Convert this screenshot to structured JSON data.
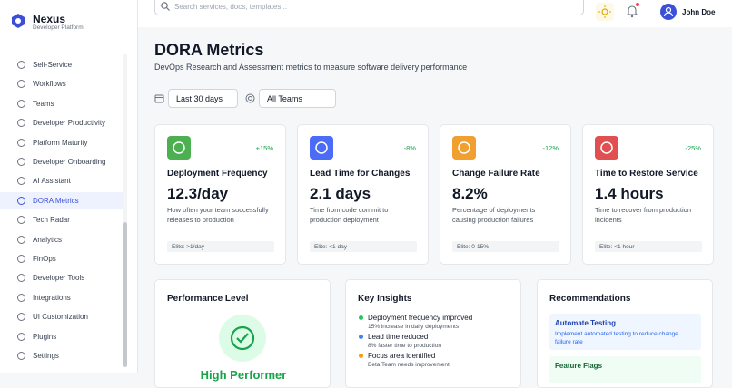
{
  "brand": {
    "name": "Nexus",
    "tagline": "Developer Platform"
  },
  "nav": [
    "Self-Service",
    "Workflows",
    "Teams",
    "Developer Productivity",
    "Platform Maturity",
    "Developer Onboarding",
    "AI Assistant",
    "DORA Metrics",
    "Tech Radar",
    "Analytics",
    "FinOps",
    "Developer Tools",
    "Integrations",
    "UI Customization",
    "Plugins",
    "Settings"
  ],
  "header": {
    "search_placeholder": "Search services, docs, templates...",
    "user": "John Doe"
  },
  "page": {
    "title": "DORA Metrics",
    "subtitle": "DevOps Research and Assessment metrics to measure software delivery performance"
  },
  "filters": [
    "Last 30 days",
    "All Teams"
  ],
  "cards": [
    {
      "change": "+15%",
      "title": "Deployment Frequency",
      "value": "12.3/day",
      "description": "How often your team successfully releases to production",
      "benchmark": "Elite: >1/day"
    },
    {
      "change": "-8%",
      "title": "Lead Time for Changes",
      "value": "2.1 days",
      "description": "Time from code commit to production deployment",
      "benchmark": "Elite: <1 day"
    },
    {
      "change": "-12%",
      "title": "Change Failure Rate",
      "value": "8.2%",
      "description": "Percentage of deployments causing production failures",
      "benchmark": "Elite: 0-15%"
    },
    {
      "change": "-25%",
      "title": "Time to Restore Service",
      "value": "1.4 hours",
      "description": "Time to recover from production incidents",
      "benchmark": "Elite: <1 hour"
    }
  ],
  "performance": {
    "title": "Performance Level",
    "level": "High Performer"
  },
  "insights": {
    "title": "Key Insights",
    "items": [
      {
        "title": "Deployment frequency improved",
        "detail": "15% increase in daily deployments"
      },
      {
        "title": "Lead time reduced",
        "detail": "8% faster time to production"
      },
      {
        "title": "Focus area identified",
        "detail": "Beta Team needs improvement"
      }
    ]
  },
  "recommendations": {
    "title": "Recommendations",
    "items": [
      {
        "title": "Automate Testing",
        "detail": "Implement automated testing to reduce change failure rate"
      },
      {
        "title": "Feature Flags"
      }
    ]
  }
}
